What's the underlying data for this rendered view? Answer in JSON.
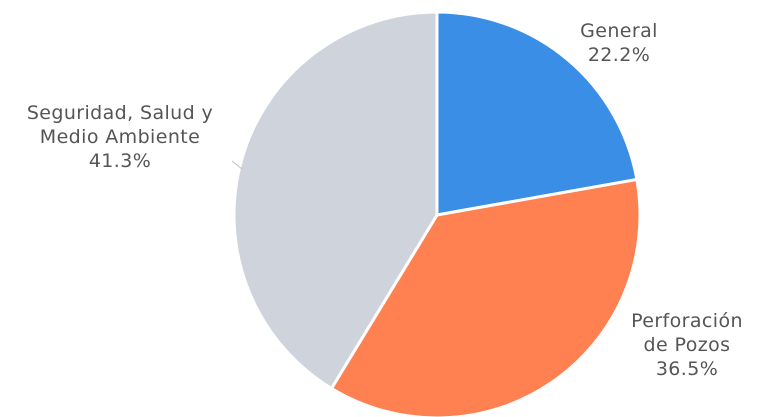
{
  "chart_data": {
    "type": "pie",
    "slices": [
      {
        "label_lines": [
          "General"
        ],
        "percent_label": "22.2%",
        "value": 22.2,
        "color": "#3a8ee6"
      },
      {
        "label_lines": [
          "Perforación",
          "de Pozos"
        ],
        "percent_label": "36.5%",
        "value": 36.5,
        "color": "#ff8050"
      },
      {
        "label_lines": [
          "Seguridad, Salud y",
          "Medio Ambiente"
        ],
        "percent_label": "41.3%",
        "value": 41.3,
        "color": "#cfd3db"
      }
    ],
    "start_angle": "top",
    "direction": "clockwise",
    "legend": "none",
    "labels": "outside"
  }
}
